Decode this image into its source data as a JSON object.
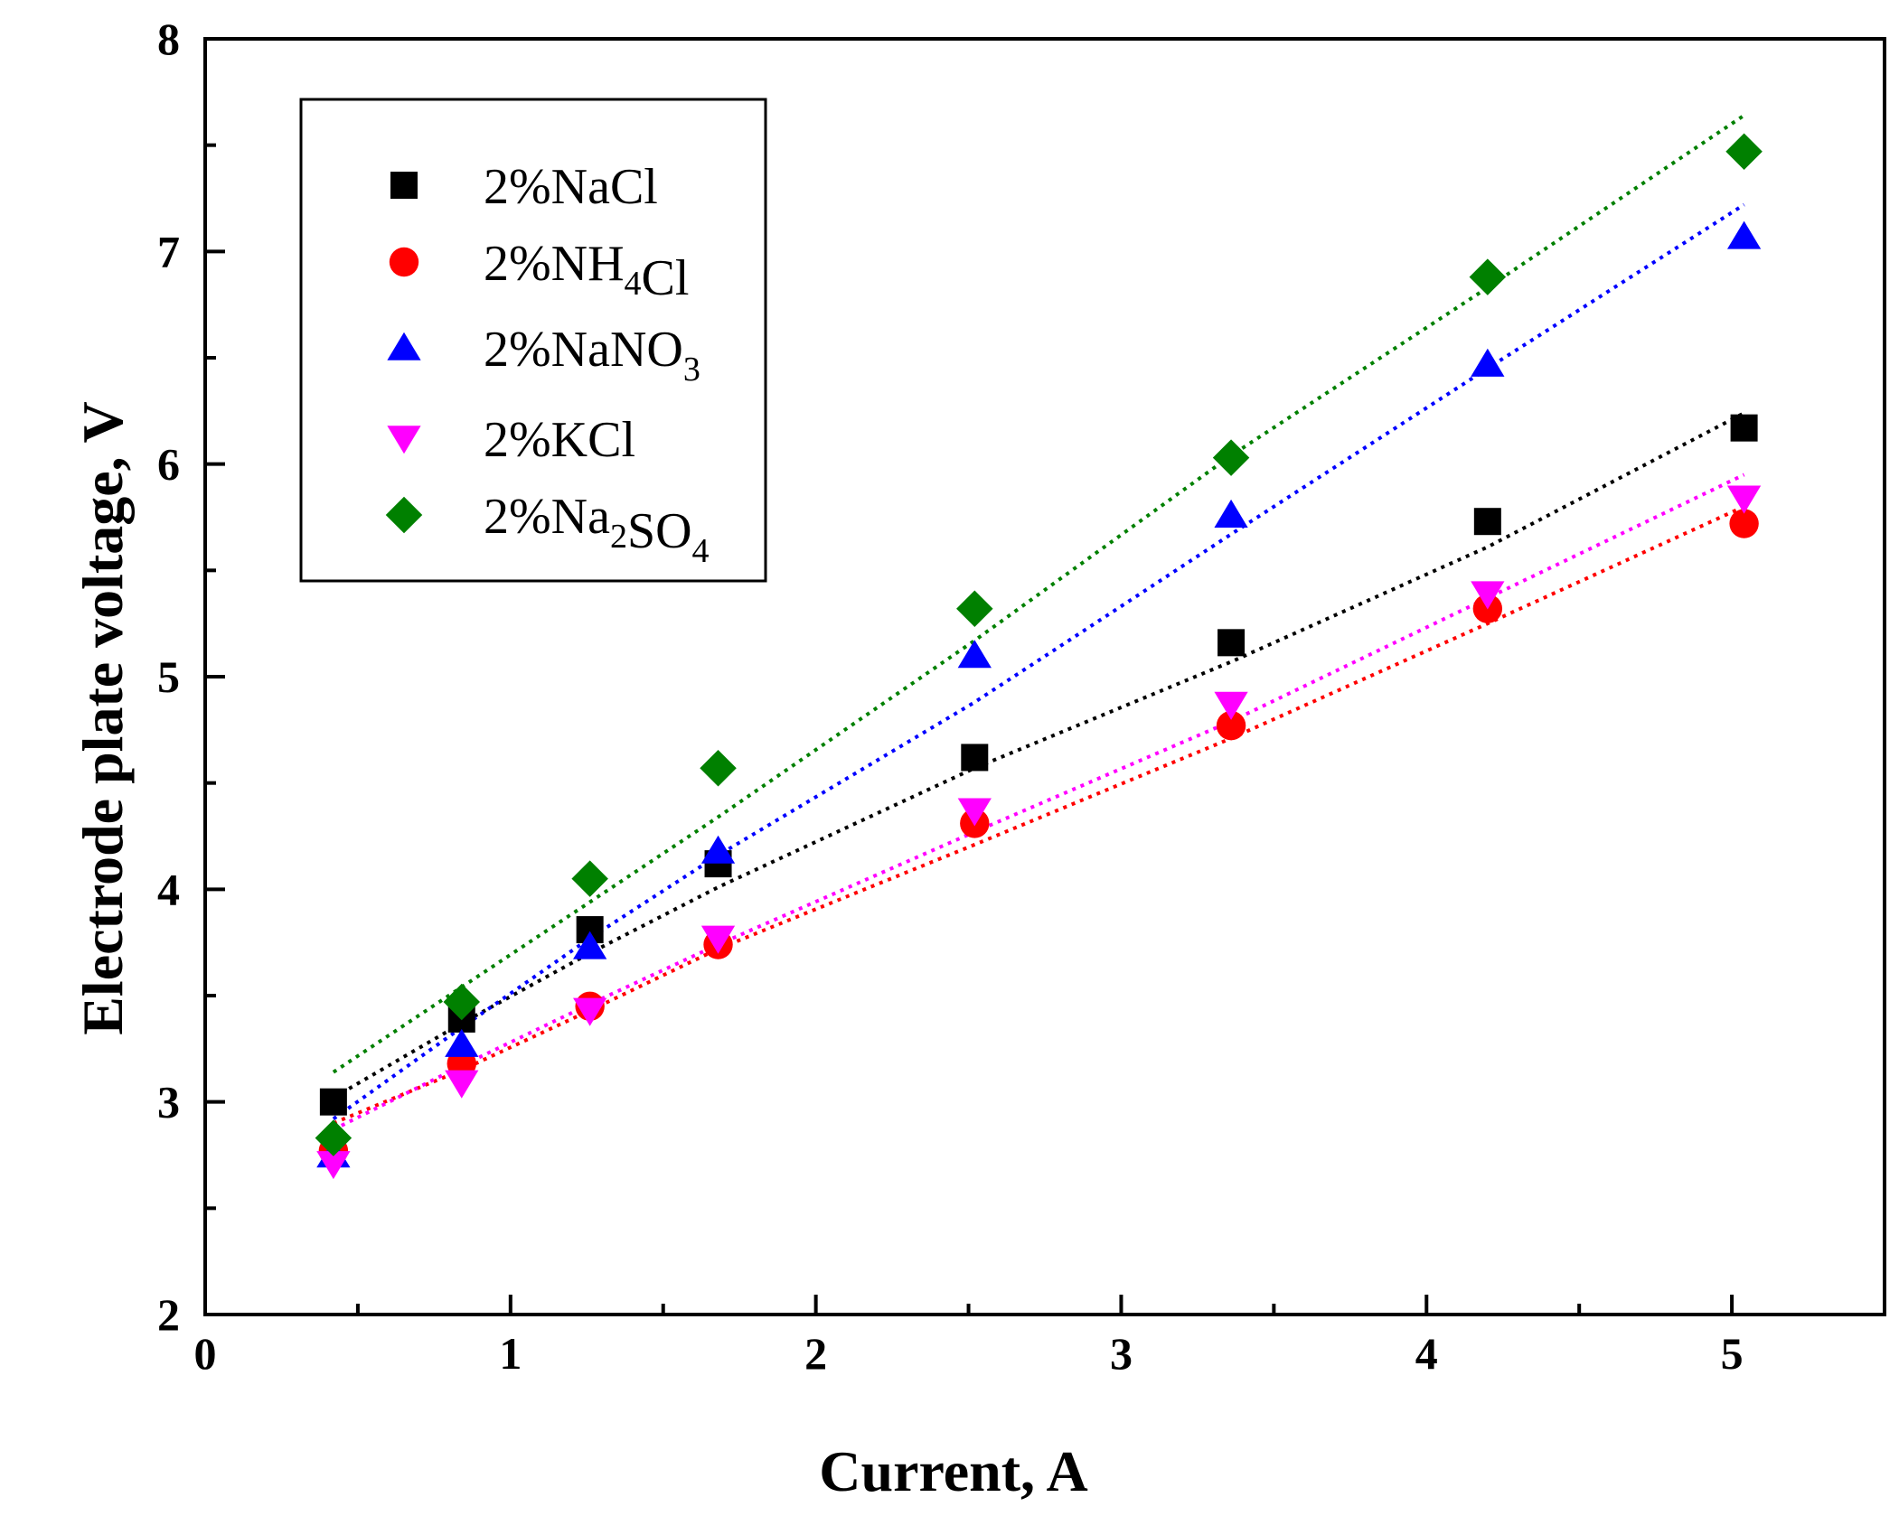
{
  "chart_data": {
    "type": "scatter",
    "title": "",
    "xlabel": "Current, A",
    "ylabel": "Electrode plate voltage, V",
    "xlim": [
      0,
      5.5
    ],
    "ylim": [
      2,
      8
    ],
    "xticks": [
      0,
      1,
      2,
      3,
      4,
      5
    ],
    "yticks": [
      2,
      3,
      4,
      5,
      6,
      7,
      8
    ],
    "grid": false,
    "legend_position": "top-left",
    "x": [
      0.42,
      0.84,
      1.26,
      1.68,
      2.52,
      3.36,
      4.2,
      5.04
    ],
    "series": [
      {
        "name": "2%NaCl",
        "legend_parts": [
          {
            "text": "2%NaCl"
          }
        ],
        "marker": "square",
        "color": "#000000",
        "values": [
          3.0,
          3.39,
          3.81,
          4.12,
          4.62,
          5.16,
          5.73,
          6.17
        ],
        "fit": [
          3.02,
          3.37,
          3.7,
          4.01,
          4.57,
          5.07,
          5.61,
          6.24
        ]
      },
      {
        "name": "2%NH4Cl",
        "legend_parts": [
          {
            "text": "2%NH"
          },
          {
            "text": "4",
            "sub": true
          },
          {
            "text": "Cl"
          }
        ],
        "marker": "circle",
        "color": "#ff0000",
        "values": [
          2.77,
          3.18,
          3.45,
          3.74,
          4.31,
          4.77,
          5.32,
          5.72
        ],
        "fit": [
          2.9,
          3.15,
          3.43,
          3.72,
          4.21,
          4.71,
          5.25,
          5.8
        ]
      },
      {
        "name": "2%NaNO3",
        "legend_parts": [
          {
            "text": "2%NaNO"
          },
          {
            "text": "3",
            "sub": true
          }
        ],
        "marker": "triangle-up",
        "color": "#0000ff",
        "values": [
          2.75,
          3.27,
          3.73,
          4.18,
          5.1,
          5.76,
          6.47,
          7.07
        ],
        "fit": [
          2.92,
          3.35,
          3.77,
          4.16,
          4.88,
          5.67,
          6.45,
          7.22
        ]
      },
      {
        "name": "2%KCl",
        "legend_parts": [
          {
            "text": "2%KCl"
          }
        ],
        "marker": "triangle-down",
        "color": "#ff00ff",
        "values": [
          2.71,
          3.09,
          3.43,
          3.77,
          4.37,
          4.87,
          5.39,
          5.84
        ],
        "fit": [
          2.87,
          3.17,
          3.46,
          3.74,
          4.27,
          4.79,
          5.37,
          5.95
        ]
      },
      {
        "name": "2%Na2SO4",
        "legend_parts": [
          {
            "text": "2%Na"
          },
          {
            "text": "2",
            "sub": true
          },
          {
            "text": "SO"
          },
          {
            "text": "4",
            "sub": true
          }
        ],
        "marker": "diamond",
        "color": "#008000",
        "values": [
          2.83,
          3.47,
          4.05,
          4.57,
          5.32,
          6.03,
          6.88,
          7.47
        ],
        "fit": [
          3.14,
          3.54,
          3.94,
          4.34,
          5.17,
          6.04,
          6.83,
          7.64
        ]
      }
    ]
  }
}
